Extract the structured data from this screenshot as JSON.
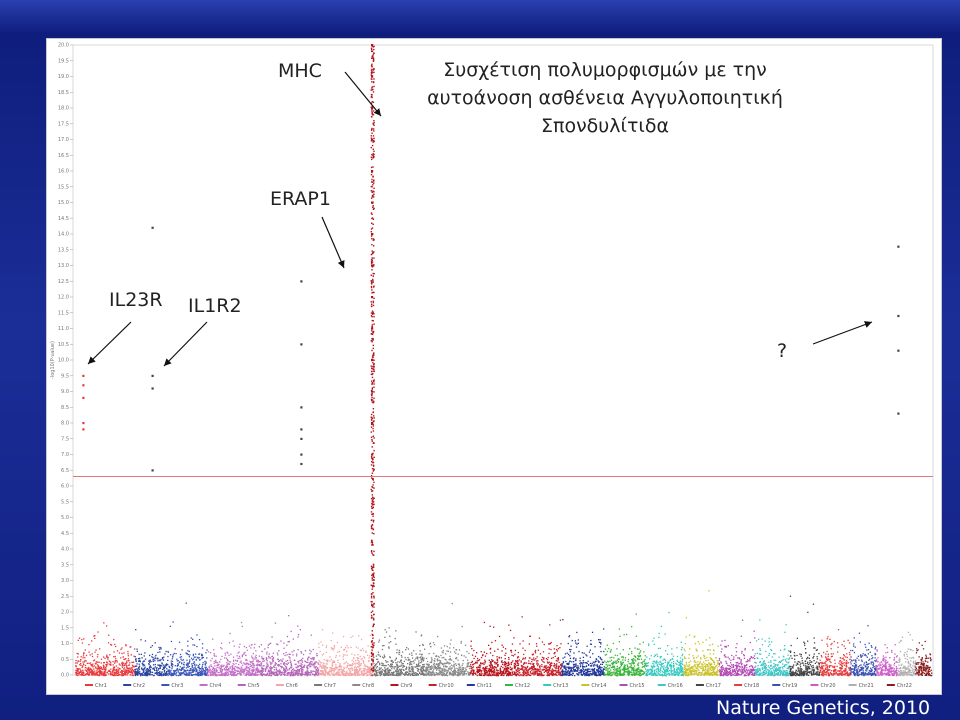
{
  "chart_data": {
    "type": "scatter",
    "title": "Συσχέτιση πολυμορφισμών με την αυτοάνοση ασθένεια Αγγυλοποιητική Σπονδυλίτιδα",
    "ylabel": "-log10(P-value)",
    "ylim": [
      0,
      20
    ],
    "yticks": [
      "0.0",
      "0.5",
      "1.0",
      "1.5",
      "2.0",
      "2.5",
      "3.0",
      "3.5",
      "4.0",
      "4.5",
      "5.0",
      "5.5",
      "6.0",
      "6.5",
      "7.0",
      "7.5",
      "8.0",
      "8.5",
      "9.0",
      "9.5",
      "10.0",
      "10.5",
      "11.0",
      "11.5",
      "12.0",
      "12.5",
      "13.0",
      "13.5",
      "14.0",
      "14.5",
      "15.0",
      "15.5",
      "16.0",
      "16.5",
      "17.0",
      "17.5",
      "18.0",
      "18.5",
      "19.0",
      "19.5",
      "20.0"
    ],
    "significance_threshold": 6.3,
    "chromosomes": [
      {
        "name": "Chr1",
        "color": "#e8393b"
      },
      {
        "name": "Chr2",
        "color": "#2a44a0"
      },
      {
        "name": "Chr3",
        "color": "#3a55b8"
      },
      {
        "name": "Chr4",
        "color": "#c36fc7"
      },
      {
        "name": "Chr5",
        "color": "#b565b8"
      },
      {
        "name": "Chr6",
        "color": "#f4a6a6"
      },
      {
        "name": "Chr7",
        "color": "#777777"
      },
      {
        "name": "Chr8",
        "color": "#8a8a8a"
      },
      {
        "name": "Chr9",
        "color": "#b8141e"
      },
      {
        "name": "Chr10",
        "color": "#c8202a"
      },
      {
        "name": "Chr11",
        "color": "#23389a"
      },
      {
        "name": "Chr12",
        "color": "#3ab53a"
      },
      {
        "name": "Chr13",
        "color": "#35c9c0"
      },
      {
        "name": "Chr14",
        "color": "#c9c227"
      },
      {
        "name": "Chr15",
        "color": "#b44ab5"
      },
      {
        "name": "Chr16",
        "color": "#40c5c5"
      },
      {
        "name": "Chr17",
        "color": "#444444"
      },
      {
        "name": "Chr18",
        "color": "#e63b3b"
      },
      {
        "name": "Chr19",
        "color": "#3a4fb0"
      },
      {
        "name": "Chr20",
        "color": "#cc5bc9"
      },
      {
        "name": "Chr21",
        "color": "#b0b0b0"
      },
      {
        "name": "Chr22",
        "color": "#8a1b1b"
      }
    ],
    "legend_labels": [
      "Chr1",
      "Chr2",
      "Chr3",
      "Chr4",
      "Chr5",
      "Chr6",
      "Chr7",
      "Chr8",
      "Chr9",
      "Chr10",
      "Chr11",
      "Chr12",
      "Chr13",
      "Chr14",
      "Chr15",
      "Chr16",
      "Chr17",
      "Chr18",
      "Chr19",
      "Chr20",
      "Chr21",
      "Chr22"
    ],
    "legend_placement": "bottom",
    "highlighted_points": [
      {
        "label": "IL23R",
        "chr": "Chr1",
        "values": [
          9.5,
          9.2,
          8.8,
          8.0,
          7.8
        ]
      },
      {
        "label": "IL1R2",
        "chr": "Chr2",
        "values": [
          14.2,
          9.5,
          9.1,
          6.5
        ]
      },
      {
        "label": "ERAP1",
        "chr": "Chr5",
        "values": [
          12.5,
          10.5,
          8.5,
          7.8,
          7.5,
          7.0,
          6.7
        ]
      },
      {
        "label": "MHC",
        "chr": "Chr6",
        "values": [
          20.0,
          19.0,
          18.0,
          17.0,
          16.0,
          15.0,
          14.0,
          13.0,
          12.0,
          11.0,
          10.0,
          9.0,
          8.0,
          7.0
        ]
      },
      {
        "label": "?",
        "chr": "Chr21",
        "values": [
          13.6,
          11.4,
          10.3,
          8.3
        ]
      }
    ]
  },
  "annotations": {
    "mhc": "MHC",
    "erap1": "ERAP1",
    "il23r": "IL23R",
    "il1r2": "IL1R2",
    "unknown": "?"
  },
  "citation": "Nature Genetics, 2010"
}
